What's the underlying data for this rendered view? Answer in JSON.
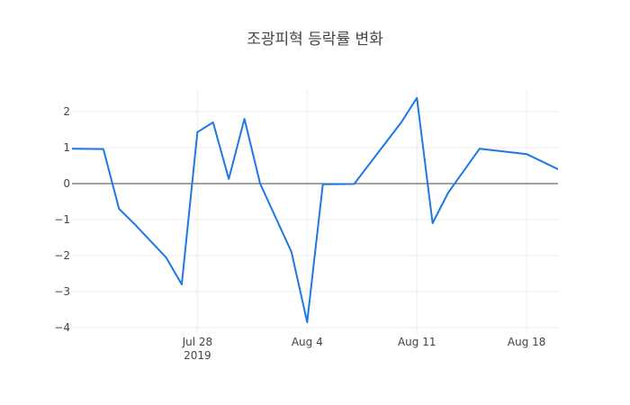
{
  "chart_data": {
    "type": "line",
    "title": "조광피혁 등락률 변화",
    "xlabel": "",
    "ylabel": "",
    "x_range": [
      "2019-07-20",
      "2019-08-20"
    ],
    "ylim": [
      -4.15,
      2.6
    ],
    "grid": true,
    "y_ticks": [
      -4,
      -3,
      -2,
      -1,
      0,
      1,
      2
    ],
    "y_tick_labels": [
      "−4",
      "−3",
      "−2",
      "−1",
      "0",
      "1",
      "2"
    ],
    "x_ticks": [
      {
        "date": "2019-07-28",
        "label": "Jul 28",
        "sublabel": "2019"
      },
      {
        "date": "2019-08-04",
        "label": "Aug 4",
        "sublabel": ""
      },
      {
        "date": "2019-08-11",
        "label": "Aug 11",
        "sublabel": ""
      },
      {
        "date": "2019-08-18",
        "label": "Aug 18",
        "sublabel": ""
      }
    ],
    "series": [
      {
        "color": "#1f77e4",
        "points": [
          {
            "x": "2019-07-20",
            "y": 0.97
          },
          {
            "x": "2019-07-22",
            "y": 0.96
          },
          {
            "x": "2019-07-23",
            "y": -0.7
          },
          {
            "x": "2019-07-24",
            "y": -1.13
          },
          {
            "x": "2019-07-26",
            "y": -2.05
          },
          {
            "x": "2019-07-27",
            "y": -2.8
          },
          {
            "x": "2019-07-28",
            "y": 1.43
          },
          {
            "x": "2019-07-29",
            "y": 1.7
          },
          {
            "x": "2019-07-30",
            "y": 0.13
          },
          {
            "x": "2019-07-31",
            "y": 1.8
          },
          {
            "x": "2019-08-01",
            "y": 0.0
          },
          {
            "x": "2019-08-03",
            "y": -1.9
          },
          {
            "x": "2019-08-04",
            "y": -3.85
          },
          {
            "x": "2019-08-05",
            "y": -0.02
          },
          {
            "x": "2019-08-07",
            "y": -0.01
          },
          {
            "x": "2019-08-10",
            "y": 1.7
          },
          {
            "x": "2019-08-11",
            "y": 2.38
          },
          {
            "x": "2019-08-12",
            "y": -1.1
          },
          {
            "x": "2019-08-13",
            "y": -0.25
          },
          {
            "x": "2019-08-15",
            "y": 0.97
          },
          {
            "x": "2019-08-18",
            "y": 0.82
          },
          {
            "x": "2019-08-20",
            "y": 0.4
          }
        ]
      }
    ]
  }
}
